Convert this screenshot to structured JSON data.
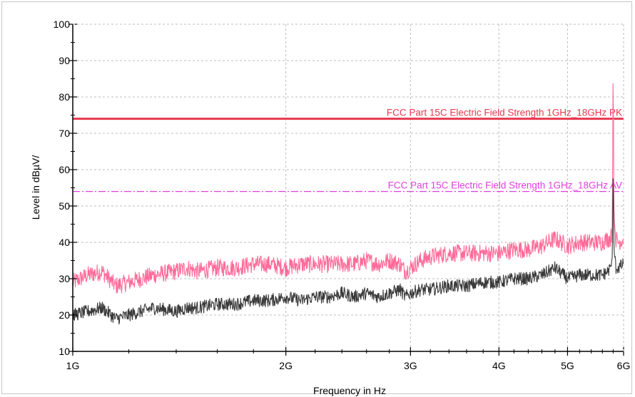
{
  "chart_data": {
    "type": "line",
    "title": "",
    "xlabel": "Frequency in Hz",
    "ylabel": "Level in dBµV/",
    "xscale": "log",
    "xlim": [
      1000000000,
      6000000000
    ],
    "ylim": [
      10,
      100
    ],
    "grid": true,
    "x_ticks": [
      {
        "value": 1000000000,
        "label": "1G"
      },
      {
        "value": 2000000000,
        "label": "2G"
      },
      {
        "value": 3000000000,
        "label": "3G"
      },
      {
        "value": 4000000000,
        "label": "4G"
      },
      {
        "value": 5000000000,
        "label": "5G"
      },
      {
        "value": 6000000000,
        "label": "6G"
      }
    ],
    "y_ticks": [
      10,
      20,
      30,
      40,
      50,
      60,
      70,
      80,
      90,
      100
    ],
    "limit_lines": [
      {
        "name": "FCC Part 15C Electric Field Strength 1GHz_18GHz PK",
        "value": 74,
        "color": "#e8384f",
        "style": "solid"
      },
      {
        "name": "FCC Part 15C Electric Field Strength 1GHz_18GHz AV",
        "value": 54,
        "color": "#e040e0",
        "style": "dashdot"
      }
    ],
    "series": [
      {
        "color": "#ff6b9a",
        "x": [
          1000000000,
          1050000000,
          1100000000,
          1150000000,
          1200000000,
          1300000000,
          1400000000,
          1450000000,
          1500000000,
          1600000000,
          1700000000,
          1800000000,
          1900000000,
          2000000000,
          2100000000,
          2200000000,
          2300000000,
          2400000000,
          2500000000,
          2600000000,
          2700000000,
          2800000000,
          2900000000,
          2950000000,
          3000000000,
          3100000000,
          3200000000,
          3400000000,
          3600000000,
          3800000000,
          4000000000,
          4200000000,
          4400000000,
          4600000000,
          4700000000,
          4800000000,
          5000000000,
          5200000000,
          5400000000,
          5600000000,
          5700000000,
          5750000000,
          5785000000,
          5800000000,
          5815000000,
          5850000000,
          5900000000,
          6000000000
        ],
        "values": [
          29,
          31,
          32,
          28,
          29,
          31,
          32,
          33,
          32,
          33,
          33,
          34,
          34,
          33,
          34,
          34,
          34,
          34,
          34,
          35,
          34,
          35,
          34,
          32,
          33,
          35,
          36,
          37,
          37,
          37,
          37,
          38,
          38,
          39,
          40,
          41,
          39,
          40,
          40,
          40,
          41,
          41,
          44,
          92,
          47,
          41,
          40,
          41
        ]
      },
      {
        "color": "#3a3a3a",
        "x": [
          1000000000,
          1050000000,
          1100000000,
          1150000000,
          1200000000,
          1300000000,
          1400000000,
          1450000000,
          1500000000,
          1600000000,
          1700000000,
          1800000000,
          1900000000,
          2000000000,
          2100000000,
          2200000000,
          2300000000,
          2400000000,
          2500000000,
          2600000000,
          2700000000,
          2800000000,
          2900000000,
          2950000000,
          3000000000,
          3100000000,
          3200000000,
          3400000000,
          3600000000,
          3800000000,
          4000000000,
          4200000000,
          4400000000,
          4600000000,
          4700000000,
          4800000000,
          5000000000,
          5200000000,
          5400000000,
          5600000000,
          5700000000,
          5750000000,
          5785000000,
          5800000000,
          5815000000,
          5850000000,
          5900000000,
          6000000000
        ],
        "values": [
          20,
          21,
          22,
          19,
          20,
          22,
          21,
          22,
          22,
          23,
          23,
          24,
          24,
          25,
          24,
          25,
          25,
          26,
          25,
          26,
          25,
          26,
          27,
          25,
          26,
          27,
          27,
          28,
          28,
          29,
          29,
          30,
          30,
          31,
          32,
          33,
          30,
          31,
          31,
          31,
          32,
          33,
          36,
          62,
          38,
          33,
          33,
          34
        ]
      }
    ]
  }
}
